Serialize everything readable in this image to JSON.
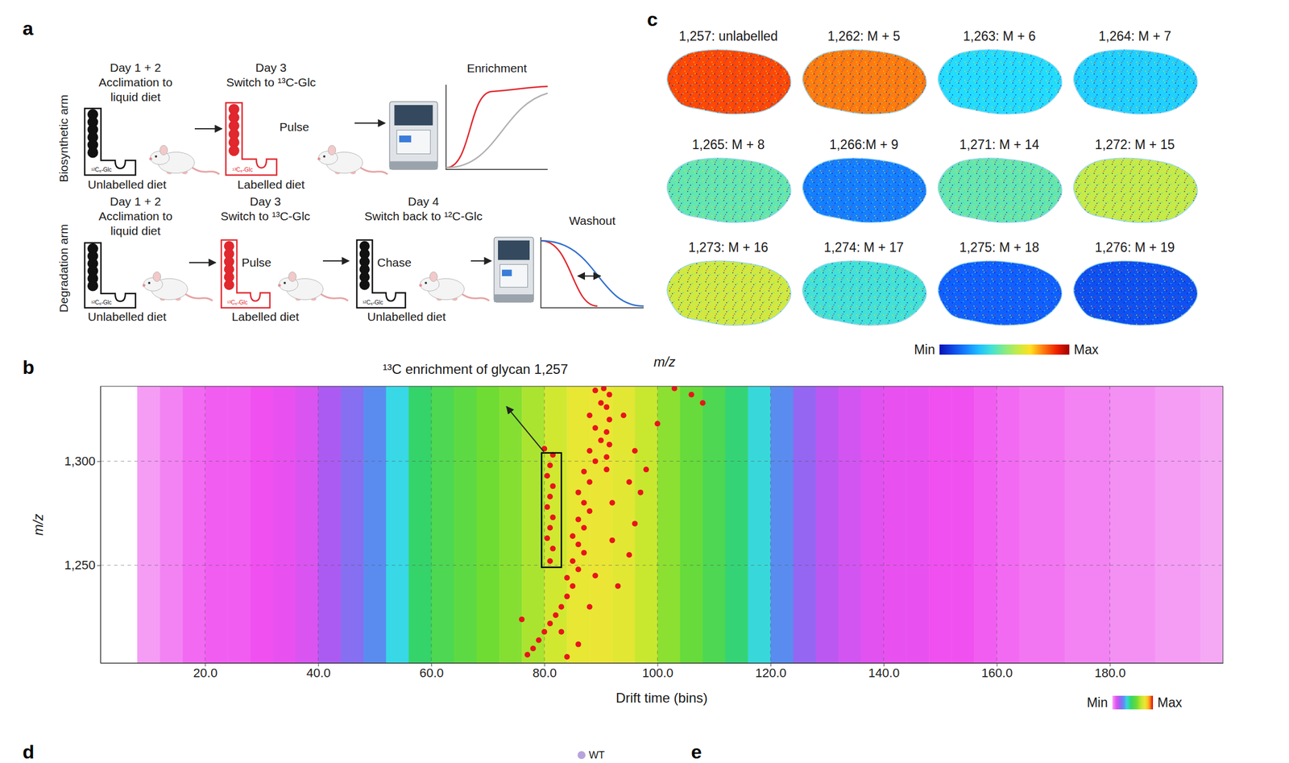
{
  "figure": {
    "panel_letters": [
      "a",
      "b",
      "c",
      "d",
      "e"
    ],
    "panel_a": {
      "row_labels": [
        "Biosynthetic arm",
        "Degradation arm"
      ],
      "biosynthetic": {
        "steps": [
          {
            "day": "Day 1 + 2",
            "action": [
              "Acclimation to",
              "liquid diet"
            ],
            "diet": "Unlabelled diet",
            "bottle_label": "¹²C₆-Glc",
            "color": "#111111"
          },
          {
            "day": "Day 3",
            "action": [
              "Switch to ¹³C-Glc"
            ],
            "phase": "Pulse",
            "diet": "Labelled diet",
            "bottle_label": "¹³C₆-Glc",
            "color": "#e0282e"
          }
        ],
        "plot_title": "Enrichment"
      },
      "degradation": {
        "steps": [
          {
            "day": "Day 1 + 2",
            "action": [
              "Acclimation to",
              "liquid diet"
            ],
            "diet": "Unlabelled diet",
            "bottle_label": "¹²C₆-Glc",
            "color": "#111111"
          },
          {
            "day": "Day 3",
            "action": [
              "Switch to ¹³C-Glc"
            ],
            "phase": "Pulse",
            "diet": "Labelled diet",
            "bottle_label": "¹³C₆-Glc",
            "color": "#e0282e"
          },
          {
            "day": "Day 4",
            "action": [
              "Switch back to ¹²C-Glc"
            ],
            "phase": "Chase",
            "diet": "Unlabelled diet",
            "bottle_label": "¹²C₆-Glc",
            "color": "#111111"
          }
        ],
        "plot_title": "Washout"
      }
    },
    "panel_c": {
      "axis_label": "m/z",
      "images": [
        {
          "label": "1,257: unlabelled",
          "intensity": 0.85
        },
        {
          "label": "1,262: M + 5",
          "intensity": 0.8
        },
        {
          "label": "1,263: M + 6",
          "intensity": 0.35
        },
        {
          "label": "1,264: M + 7",
          "intensity": 0.33
        },
        {
          "label": "1,265: M + 8",
          "intensity": 0.45
        },
        {
          "label": "1,266:M + 9",
          "intensity": 0.2
        },
        {
          "label": "1,271: M + 14",
          "intensity": 0.45
        },
        {
          "label": "1,272: M + 15",
          "intensity": 0.6
        },
        {
          "label": "1,273: M + 16",
          "intensity": 0.62
        },
        {
          "label": "1,274: M + 17",
          "intensity": 0.4
        },
        {
          "label": "1,275: M + 18",
          "intensity": 0.15
        },
        {
          "label": "1,276: M + 19",
          "intensity": 0.12
        }
      ],
      "colorbar": {
        "range": [
          0,
          1
        ],
        "ticks": [
          {
            "value": 0,
            "label": "Min"
          },
          {
            "value": 1,
            "label": "Max"
          }
        ]
      }
    },
    "panel_d": {
      "legend": [
        {
          "name": "WT",
          "color": "#b7a3dc"
        }
      ]
    }
  },
  "chart_data": {
    "type": "heatmap",
    "title": "¹³C enrichment of glycan 1,257",
    "x_label": "Drift time (bins)",
    "y_label": "m/z",
    "xlim": [
      1.5,
      200
    ],
    "ylim": [
      1203,
      1336
    ],
    "xticks": [
      {
        "value": 20,
        "label": "20.0"
      },
      {
        "value": 40,
        "label": "40.0"
      },
      {
        "value": 60,
        "label": "60.0"
      },
      {
        "value": 80,
        "label": "80.0"
      },
      {
        "value": 100,
        "label": "100.0"
      },
      {
        "value": 120,
        "label": "120.0"
      },
      {
        "value": 140,
        "label": "140.0"
      },
      {
        "value": 160,
        "label": "160.0"
      },
      {
        "value": 180,
        "label": "180.0"
      }
    ],
    "yticks": [
      {
        "value": 1250,
        "label": "1,250"
      },
      {
        "value": 1300,
        "label": "1,300"
      }
    ],
    "grid": true,
    "bins": [
      0,
      4,
      8,
      12,
      16,
      20,
      24,
      28,
      32,
      36,
      40,
      44,
      48,
      52,
      56,
      60,
      64,
      68,
      72,
      76,
      80,
      84,
      88,
      92,
      96,
      100,
      104,
      108,
      112,
      116,
      120,
      124,
      128,
      132,
      136,
      140,
      144,
      148,
      152,
      156,
      160,
      164,
      168,
      172,
      176,
      180,
      184,
      188,
      192,
      196,
      200
    ],
    "intensity": [
      null,
      null,
      0.02,
      0.04,
      0.06,
      0.07,
      0.07,
      0.08,
      0.09,
      0.11,
      0.17,
      0.22,
      0.28,
      0.36,
      0.46,
      0.52,
      0.56,
      0.6,
      0.63,
      0.68,
      0.74,
      0.79,
      0.8,
      0.78,
      0.72,
      0.64,
      0.58,
      0.52,
      0.45,
      0.37,
      0.28,
      0.2,
      0.15,
      0.12,
      0.1,
      0.09,
      0.09,
      0.08,
      0.08,
      0.07,
      0.06,
      0.05,
      0.05,
      0.04,
      0.04,
      0.03,
      0.03,
      0.02,
      0.02,
      0.01
    ],
    "colorbar": {
      "range": [
        0,
        1
      ],
      "ticks": [
        {
          "value": 0,
          "label": "Min"
        },
        {
          "value": 1,
          "label": "Max"
        }
      ]
    },
    "overlay": {
      "type": "scatter",
      "color": "#e8141b",
      "x": [
        81,
        81.5,
        80.5,
        81,
        81.5,
        80.5,
        81,
        81.5,
        80.5,
        81,
        81.5,
        80,
        77,
        78,
        79,
        80,
        81,
        82,
        83,
        84,
        85,
        84,
        86,
        85,
        87,
        86,
        85,
        87,
        86,
        88,
        87,
        86,
        88,
        87,
        89,
        88,
        90,
        89,
        88,
        90,
        89,
        91,
        91,
        91.5,
        91,
        91.5,
        91,
        91.5,
        90.5,
        76,
        84,
        86,
        83,
        88,
        89,
        92,
        93,
        95,
        96,
        97,
        98,
        96,
        94,
        100,
        103,
        106,
        108,
        95,
        92
      ],
      "values": [
        1252,
        1258,
        1263,
        1268,
        1273,
        1278,
        1283,
        1288,
        1293,
        1298,
        1303,
        1306,
        1207,
        1210,
        1214,
        1218,
        1222,
        1226,
        1230,
        1235,
        1240,
        1244,
        1248,
        1252,
        1256,
        1260,
        1264,
        1268,
        1272,
        1276,
        1280,
        1285,
        1290,
        1295,
        1300,
        1305,
        1310,
        1316,
        1322,
        1328,
        1334,
        1296,
        1302,
        1308,
        1314,
        1320,
        1326,
        1332,
        1335,
        1224,
        1206,
        1212,
        1218,
        1230,
        1245,
        1262,
        1240,
        1255,
        1270,
        1285,
        1296,
        1305,
        1322,
        1318,
        1335,
        1332,
        1328,
        1290,
        1280
      ]
    },
    "annotation_box": {
      "x": [
        79.5,
        83
      ],
      "y": [
        1249,
        1304
      ]
    }
  }
}
